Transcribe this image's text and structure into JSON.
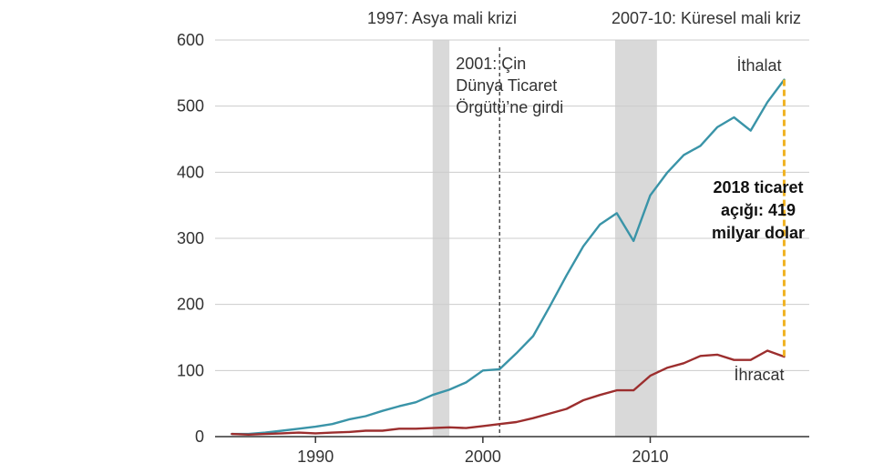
{
  "chart_data": {
    "type": "line",
    "xlabel": "",
    "ylabel": "",
    "xlim": [
      1984,
      2019.5
    ],
    "ylim": [
      0,
      600
    ],
    "y_ticks": [
      0,
      100,
      200,
      300,
      400,
      500,
      600
    ],
    "x_ticks": [
      1990,
      2000,
      2010
    ],
    "y_tick_labels": [
      "0",
      "100",
      "200",
      "300",
      "400",
      "500",
      "600"
    ],
    "x_tick_labels": [
      "1990",
      "2000",
      "2010"
    ],
    "grid": true,
    "series": [
      {
        "name": "İthalat",
        "color": "#3a94a8",
        "x": [
          1985,
          1986,
          1987,
          1988,
          1989,
          1990,
          1991,
          1992,
          1993,
          1994,
          1995,
          1996,
          1997,
          1998,
          1999,
          2000,
          2001,
          2002,
          2003,
          2004,
          2005,
          2006,
          2007,
          2008,
          2009,
          2010,
          2011,
          2012,
          2013,
          2014,
          2015,
          2016,
          2017,
          2018
        ],
        "values": [
          4,
          4,
          6,
          9,
          12,
          15,
          19,
          26,
          31,
          39,
          46,
          52,
          63,
          71,
          82,
          100,
          102,
          126,
          152,
          197,
          244,
          288,
          321,
          338,
          296,
          365,
          399,
          426,
          440,
          468,
          483,
          463,
          506,
          540
        ]
      },
      {
        "name": "İhracat",
        "color": "#9c2e2e",
        "x": [
          1985,
          1986,
          1987,
          1988,
          1989,
          1990,
          1991,
          1992,
          1993,
          1994,
          1995,
          1996,
          1997,
          1998,
          1999,
          2000,
          2001,
          2002,
          2003,
          2004,
          2005,
          2006,
          2007,
          2008,
          2009,
          2010,
          2011,
          2012,
          2013,
          2014,
          2015,
          2016,
          2017,
          2018
        ],
        "values": [
          4,
          3,
          4,
          5,
          6,
          5,
          6,
          7,
          9,
          9,
          12,
          12,
          13,
          14,
          13,
          16,
          19,
          22,
          28,
          35,
          42,
          55,
          63,
          70,
          70,
          92,
          104,
          111,
          122,
          124,
          116,
          116,
          130,
          121
        ]
      }
    ],
    "shaded_periods": [
      {
        "start": 1997,
        "end": 1998,
        "label": "1997: Asya mali krizi",
        "color": "#d9d9d9"
      },
      {
        "start": 2007.9,
        "end": 2010.4,
        "label": "2007-10: Küresel mali kriz",
        "color": "#d9d9d9"
      }
    ],
    "vline": {
      "x": 2001,
      "label_lines": [
        "2001: Çin",
        "Dünya Ticaret",
        "Örgütü’ne girdi"
      ]
    },
    "gap": {
      "x": 2018,
      "from": 121,
      "to": 540,
      "color": "#f0b323",
      "label_lines": [
        "2018 ticaret",
        "açığı: 419",
        "milyar dolar"
      ]
    },
    "series_labels": {
      "imports": "İthalat",
      "exports": "İhracat"
    }
  }
}
